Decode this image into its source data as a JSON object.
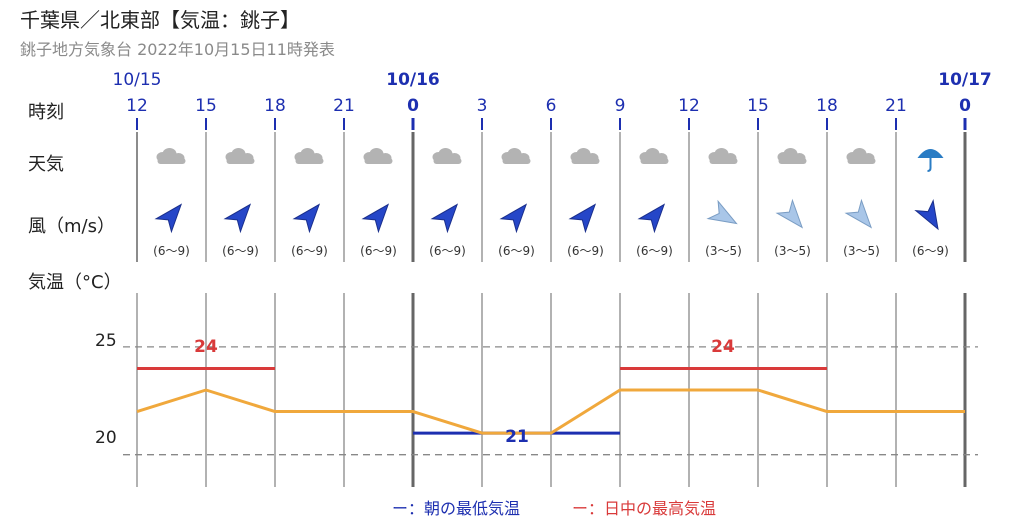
{
  "header": {
    "title": "千葉県／北東部【気温：銚子】",
    "subtitle": "銚子地方気象台 2022年10月15日11時発表"
  },
  "row_labels": {
    "time": "時刻",
    "weather": "天気",
    "wind": "風（m/s）",
    "temp": "気温（°C）"
  },
  "dates": [
    "10/15",
    "10/16",
    "10/17"
  ],
  "hours": [
    "12",
    "15",
    "18",
    "21",
    "0",
    "3",
    "6",
    "9",
    "12",
    "15",
    "18",
    "21",
    "0"
  ],
  "weather_icons": [
    "cloud-icon",
    "cloud-icon",
    "cloud-icon",
    "cloud-icon",
    "cloud-icon",
    "cloud-icon",
    "cloud-icon",
    "cloud-icon",
    "cloud-icon",
    "cloud-icon",
    "cloud-icon",
    "umbrella-icon"
  ],
  "wind": [
    "(6〜9)",
    "(6〜9)",
    "(6〜9)",
    "(6〜9)",
    "(6〜9)",
    "(6〜9)",
    "(6〜9)",
    "(6〜9)",
    "(3〜5)",
    "(3〜5)",
    "(3〜5)",
    "(6〜9)"
  ],
  "chart_data": {
    "type": "line",
    "x": [
      "10/15 12",
      "15",
      "18",
      "21",
      "10/16 0",
      "3",
      "6",
      "9",
      "12",
      "15",
      "18",
      "21",
      "10/17 0"
    ],
    "series": [
      {
        "values": [
          22,
          23,
          22,
          22,
          22,
          21,
          21,
          23,
          23,
          23,
          22,
          22,
          22
        ]
      }
    ],
    "max_temp": [
      {
        "value": 24,
        "label": "24"
      },
      {
        "value": 24,
        "label": "24"
      }
    ],
    "min_temp": [
      {
        "value": 21,
        "label": "21"
      }
    ],
    "y_ticks": [
      "25",
      "20"
    ],
    "ylim": [
      18.5,
      27.5
    ],
    "colors": {
      "temperature": "#f0a83c",
      "max": "#d93a3a",
      "min": "#1d2fb0"
    }
  },
  "legend": {
    "min": "ー：朝の最低気温",
    "max": "ー：日中の最高気温"
  }
}
